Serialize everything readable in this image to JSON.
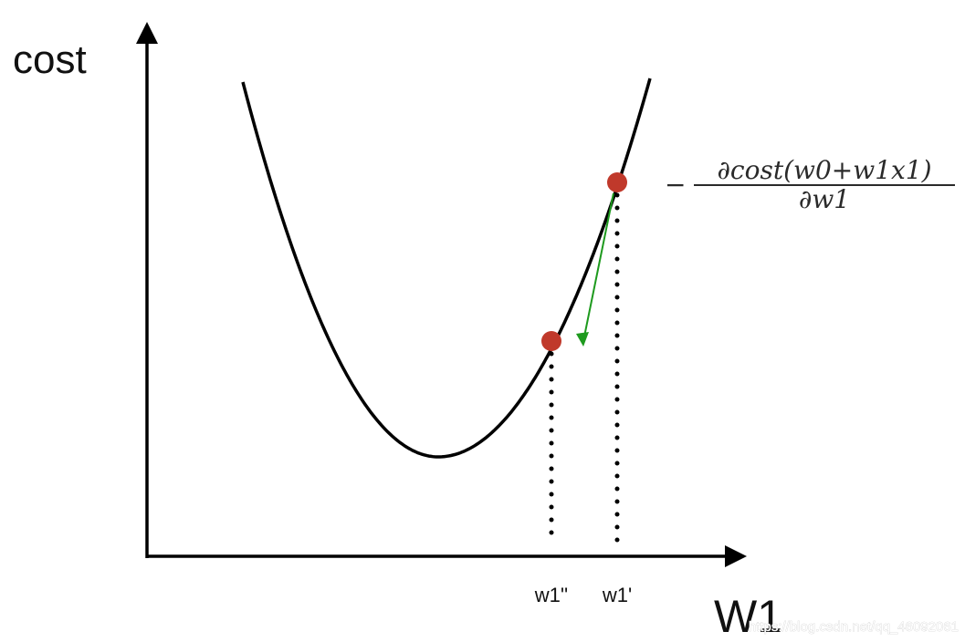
{
  "axes": {
    "y_label": "cost",
    "x_label": "W1"
  },
  "ticks": {
    "w1_new": "w1''",
    "w1_old": "w1'"
  },
  "formula": {
    "minus": "−",
    "numerator": "∂cost(w0+w1x1)",
    "denominator": "∂w1"
  },
  "watermark": "https://blog.csdn.net/qq_46092061",
  "colors": {
    "curve": "#000000",
    "point": "#c0392b",
    "arrow": "#1e9a1e",
    "dots": "#000000"
  }
}
